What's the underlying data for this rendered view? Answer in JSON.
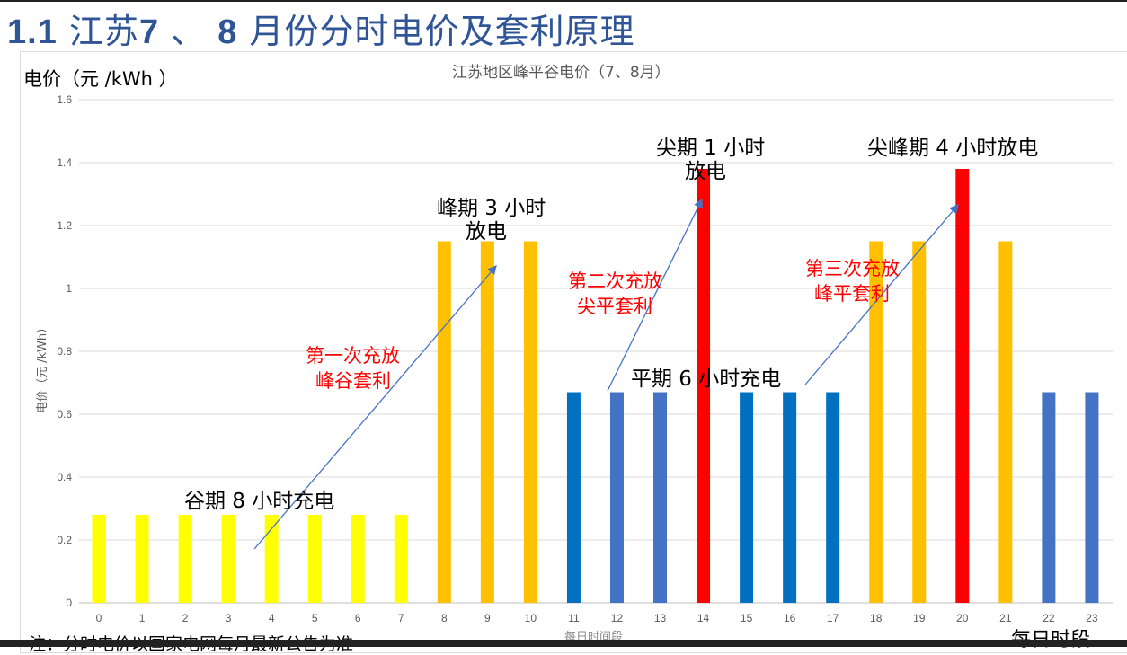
{
  "page_title": {
    "num": "1.1",
    "a": "江苏",
    "b": "7",
    "c": "、",
    "d": "8",
    "e": "月份分时电价及套利原理"
  },
  "unit_label": "电价（元 /kWh ）",
  "footnote": "注：分时电价以国家电网每月最新公告为准",
  "x_caption": "每日时段",
  "chart_data": {
    "type": "bar",
    "title": "江苏地区峰平谷电价（7、8月）",
    "xlabel": "每日时间段",
    "ylabel": "电价（元 /kWh）",
    "ylim": [
      0,
      1.6
    ],
    "yticks": [
      "0",
      "0.2",
      "0.4",
      "0.6",
      "0.8",
      "1",
      "1.2",
      "1.4",
      "1.6"
    ],
    "categories": [
      "0",
      "1",
      "2",
      "3",
      "4",
      "5",
      "6",
      "7",
      "8",
      "9",
      "10",
      "11",
      "12",
      "13",
      "14",
      "15",
      "16",
      "17",
      "18",
      "19",
      "20",
      "21",
      "22",
      "23"
    ],
    "values": [
      0.28,
      0.28,
      0.28,
      0.28,
      0.28,
      0.28,
      0.28,
      0.28,
      1.15,
      1.15,
      1.15,
      0.67,
      0.67,
      0.67,
      1.38,
      0.67,
      0.67,
      0.67,
      1.15,
      1.15,
      1.38,
      1.15,
      0.67,
      0.67
    ],
    "colors": [
      "#FFFF00",
      "#FFFF00",
      "#FFFF00",
      "#FFFF00",
      "#FFFF00",
      "#FFFF00",
      "#FFFF00",
      "#FFFF00",
      "#FFC000",
      "#FFC000",
      "#FFC000",
      "#0070C0",
      "#4472C4",
      "#4472C4",
      "#FF0000",
      "#0070C0",
      "#0070C0",
      "#0070C0",
      "#FFC000",
      "#FFC000",
      "#FF0000",
      "#FFC000",
      "#4472C4",
      "#4472C4"
    ],
    "grid": true,
    "annotations": {
      "valley": "谷期 8 小时充电",
      "peak1": "峰期 3 小时",
      "peak2": "放电",
      "sharp1": "尖期 1 小时",
      "sharp2": "放电",
      "sharppeak": "尖峰期 4 小时放电",
      "flat": "平期 6 小时充电",
      "arb1a": "第一次充放",
      "arb1b": "峰谷套利",
      "arb2a": "第二次充放",
      "arb2b": "尖平套利",
      "arb3a": "第三次充放",
      "arb3b": "峰平套利"
    }
  }
}
